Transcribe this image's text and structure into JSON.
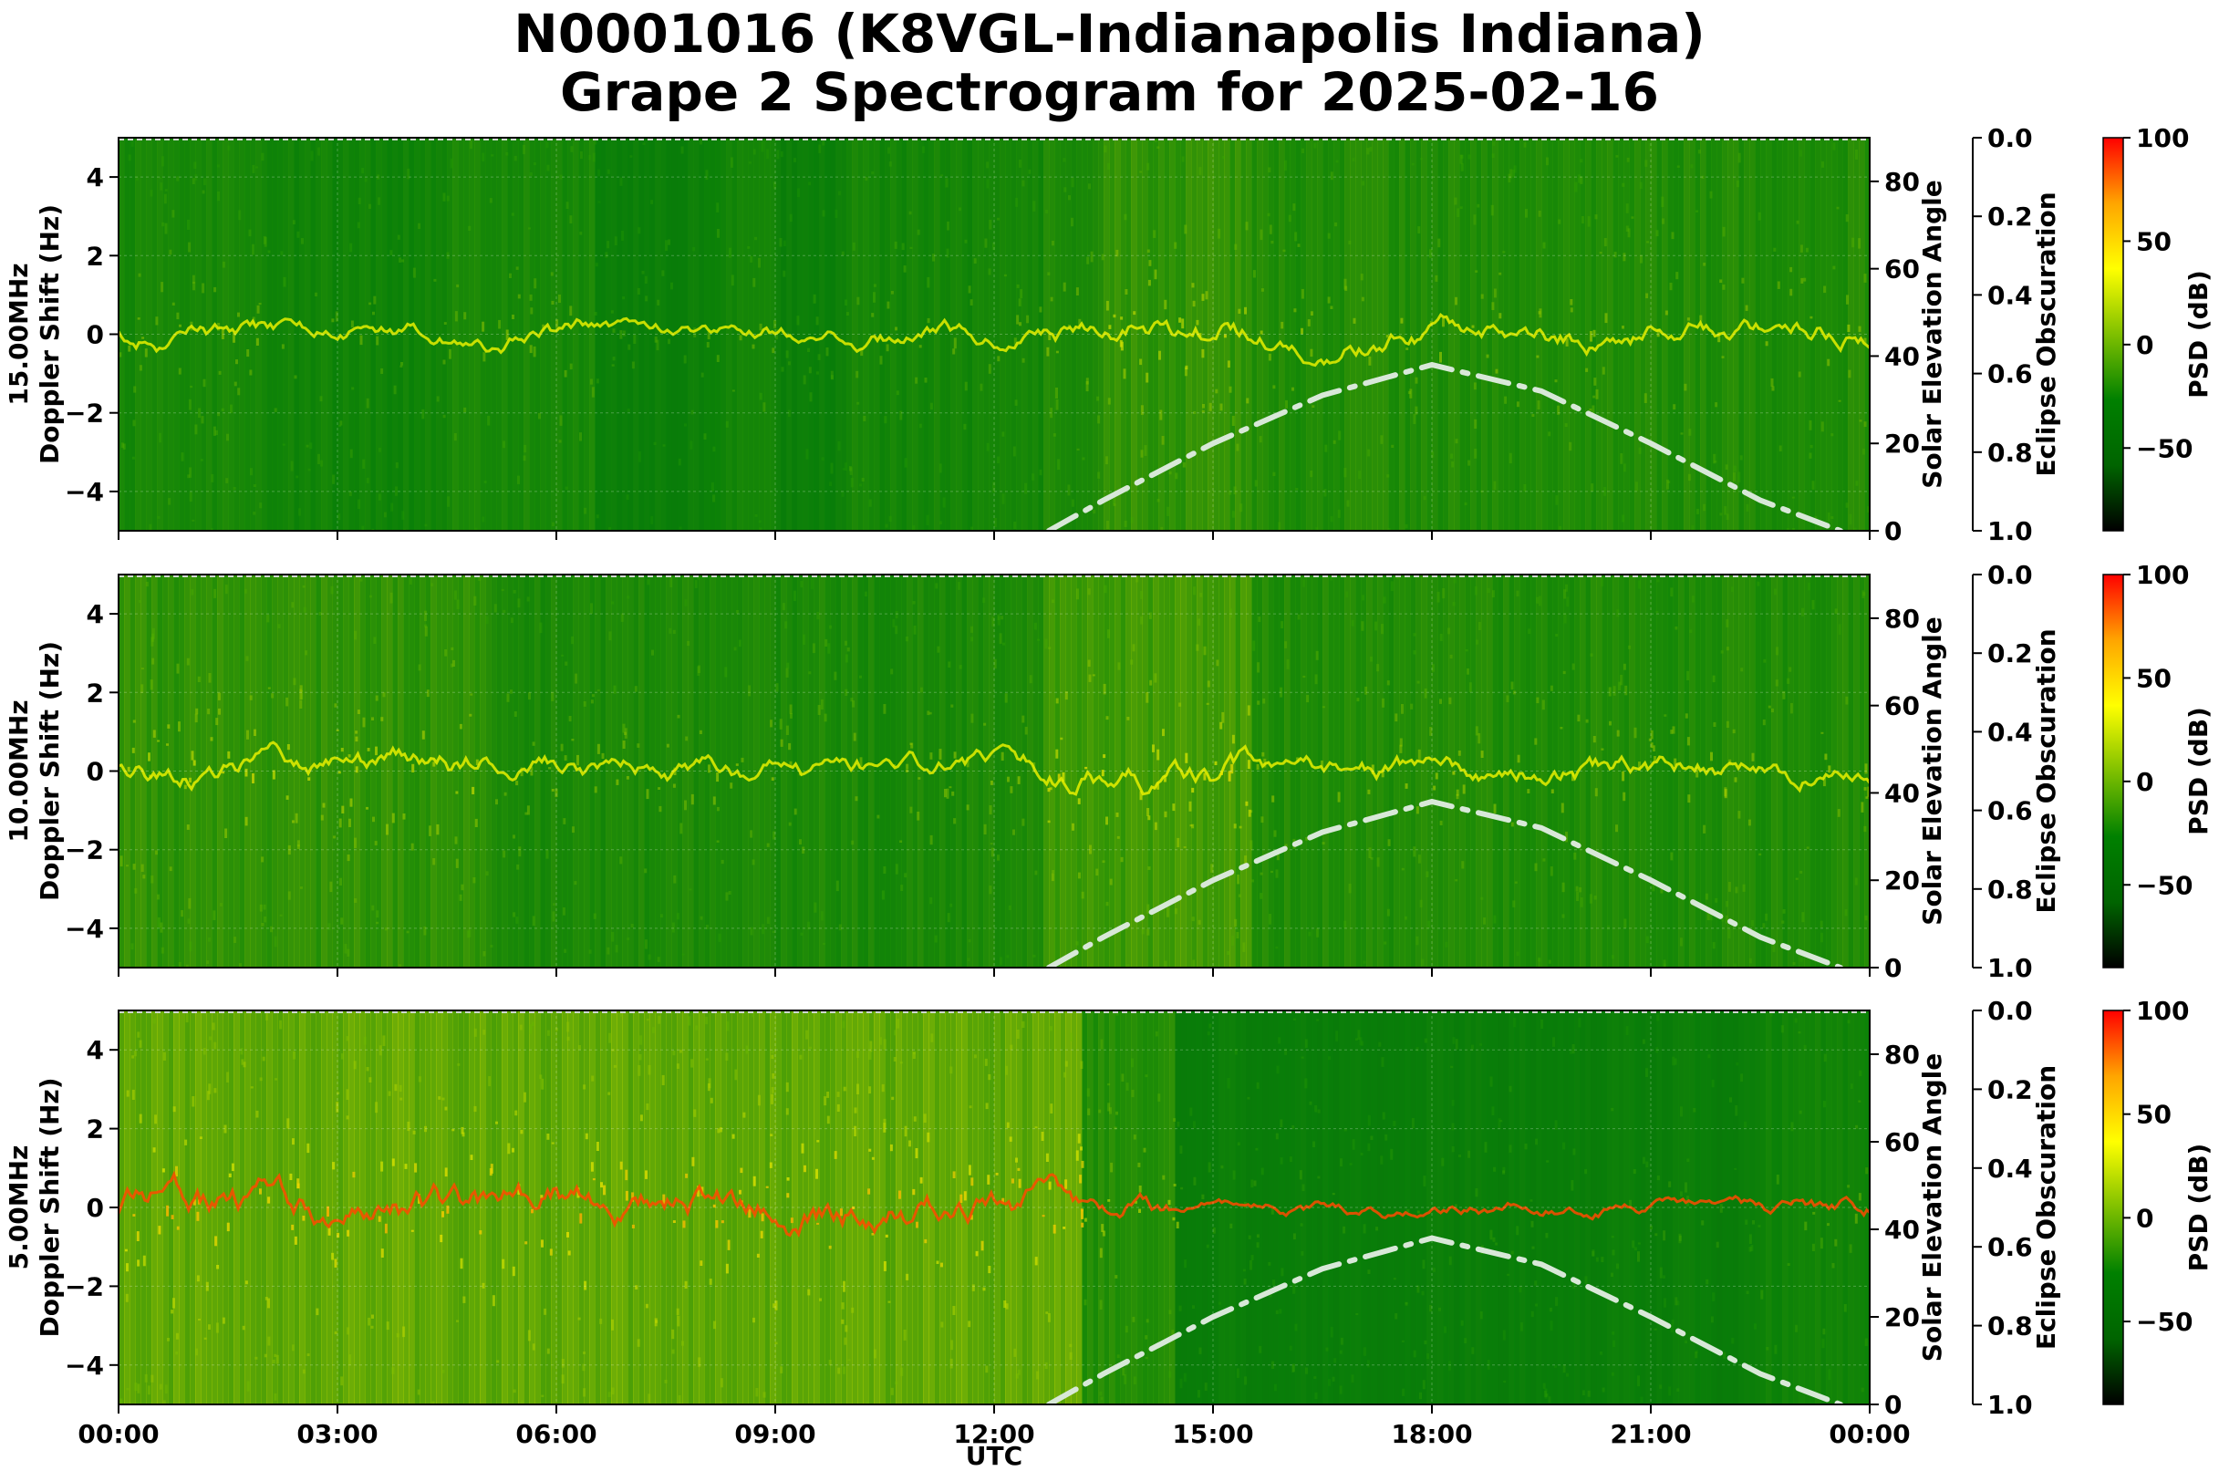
{
  "figure": {
    "title_line1": "N0001016 (K8VGL-Indianapolis Indiana)",
    "title_line2": "Grape 2 Spectrogram for 2025-02-16",
    "xlabel": "UTC",
    "xticks": [
      "00:00",
      "03:00",
      "06:00",
      "09:00",
      "12:00",
      "15:00",
      "18:00",
      "21:00",
      "00:00"
    ],
    "ylabel_doppler": "Doppler Shift (Hz)",
    "ylabel_elevation": "Solar Elevation Angle",
    "ylabel_eclipse": "Eclipse Obscuration",
    "colorbar_label": "PSD (dB)"
  },
  "chart_data": [
    {
      "type": "heatmap",
      "panel_label": "15.00MHz",
      "x_range_hours": [
        0,
        24
      ],
      "y_range_hz": [
        -5,
        5
      ],
      "yticks_hz": [
        "4",
        "2",
        "0",
        "−2",
        "−4"
      ],
      "secondary_y": {
        "label": "Solar Elevation Angle",
        "range": [
          0,
          90
        ],
        "ticks": [
          "80",
          "60",
          "40",
          "20",
          "0"
        ]
      },
      "tertiary_y": {
        "label": "Eclipse Obscuration",
        "range": [
          0.0,
          1.0
        ],
        "inverted": true,
        "ticks": [
          "0.0",
          "0.2",
          "0.4",
          "0.6",
          "0.8",
          "1.0"
        ]
      },
      "colorbar": {
        "label": "PSD (dB)",
        "range": [
          -90,
          100
        ],
        "ticks": [
          "100",
          "50",
          "0",
          "−50"
        ]
      },
      "solar_elevation_curve": {
        "style": "dash-dot",
        "color": "#d8e8d8",
        "points": [
          [
            12.75,
            0
          ],
          [
            13.5,
            7
          ],
          [
            15,
            20
          ],
          [
            16.5,
            31
          ],
          [
            18,
            38
          ],
          [
            19.5,
            32
          ],
          [
            21,
            20
          ],
          [
            22.5,
            7
          ],
          [
            23.6,
            0
          ]
        ]
      },
      "grid": true,
      "dominant_trace": "doppler near 0 Hz",
      "activity": [
        [
          0,
          2,
          0.45
        ],
        [
          2,
          4.5,
          0.35
        ],
        [
          4.5,
          6.5,
          0.45
        ],
        [
          6.5,
          8,
          0.2
        ],
        [
          8,
          9,
          0.35
        ],
        [
          9,
          10,
          0.2
        ],
        [
          10,
          12.7,
          0.4
        ],
        [
          12.7,
          13.5,
          0.5
        ],
        [
          13.5,
          15.5,
          0.7
        ],
        [
          15.5,
          24,
          0.55
        ]
      ]
    },
    {
      "type": "heatmap",
      "panel_label": "10.00MHz",
      "x_range_hours": [
        0,
        24
      ],
      "y_range_hz": [
        -5,
        5
      ],
      "yticks_hz": [
        "4",
        "2",
        "0",
        "−2",
        "−4"
      ],
      "secondary_y": {
        "label": "Solar Elevation Angle",
        "range": [
          0,
          90
        ],
        "ticks": [
          "80",
          "60",
          "40",
          "20",
          "0"
        ]
      },
      "tertiary_y": {
        "label": "Eclipse Obscuration",
        "range": [
          0.0,
          1.0
        ],
        "inverted": true,
        "ticks": [
          "0.0",
          "0.2",
          "0.4",
          "0.6",
          "0.8",
          "1.0"
        ]
      },
      "colorbar": {
        "label": "PSD (dB)",
        "range": [
          -90,
          100
        ],
        "ticks": [
          "100",
          "50",
          "0",
          "−50"
        ]
      },
      "solar_elevation_curve": {
        "style": "dash-dot",
        "color": "#d8e8d8",
        "points": [
          [
            12.75,
            0
          ],
          [
            13.5,
            7
          ],
          [
            15,
            20
          ],
          [
            16.5,
            31
          ],
          [
            18,
            38
          ],
          [
            19.5,
            32
          ],
          [
            21,
            20
          ],
          [
            22.5,
            7
          ],
          [
            23.6,
            0
          ]
        ]
      },
      "grid": true,
      "dominant_trace": "doppler near 0 Hz",
      "activity": [
        [
          0,
          5,
          0.7
        ],
        [
          5,
          7,
          0.5
        ],
        [
          7,
          12.7,
          0.5
        ],
        [
          12.7,
          15.5,
          0.8
        ],
        [
          15.5,
          24,
          0.55
        ]
      ]
    },
    {
      "type": "heatmap",
      "panel_label": "5.00MHz",
      "x_range_hours": [
        0,
        24
      ],
      "y_range_hz": [
        -5,
        5
      ],
      "yticks_hz": [
        "4",
        "2",
        "0",
        "−2",
        "−4"
      ],
      "secondary_y": {
        "label": "Solar Elevation Angle",
        "range": [
          0,
          90
        ],
        "ticks": [
          "80",
          "60",
          "40",
          "20",
          "0"
        ]
      },
      "tertiary_y": {
        "label": "Eclipse Obscuration",
        "range": [
          0.0,
          1.0
        ],
        "inverted": true,
        "ticks": [
          "0.0",
          "0.2",
          "0.4",
          "0.6",
          "0.8",
          "1.0"
        ]
      },
      "colorbar": {
        "label": "PSD (dB)",
        "range": [
          -90,
          100
        ],
        "ticks": [
          "100",
          "50",
          "0",
          "−50"
        ]
      },
      "solar_elevation_curve": {
        "style": "dash-dot",
        "color": "#d8e8d8",
        "points": [
          [
            12.75,
            0
          ],
          [
            13.5,
            7
          ],
          [
            15,
            20
          ],
          [
            16.5,
            31
          ],
          [
            18,
            38
          ],
          [
            19.5,
            32
          ],
          [
            21,
            20
          ],
          [
            22.5,
            7
          ],
          [
            23.6,
            0
          ]
        ]
      },
      "grid": true,
      "dominant_trace": "doppler near 0 Hz (strong, red)",
      "activity": [
        [
          0,
          13.2,
          1.0
        ],
        [
          13.2,
          14.5,
          0.6
        ],
        [
          14.5,
          22.5,
          0.15
        ],
        [
          22.5,
          24,
          0.35
        ]
      ]
    }
  ],
  "colors": {
    "colormap": [
      "#000000",
      "#006400",
      "#008000",
      "#7fc000",
      "#ffff00",
      "#ffa500",
      "#ff0000"
    ],
    "solar_curve": "#d8e8d8"
  }
}
